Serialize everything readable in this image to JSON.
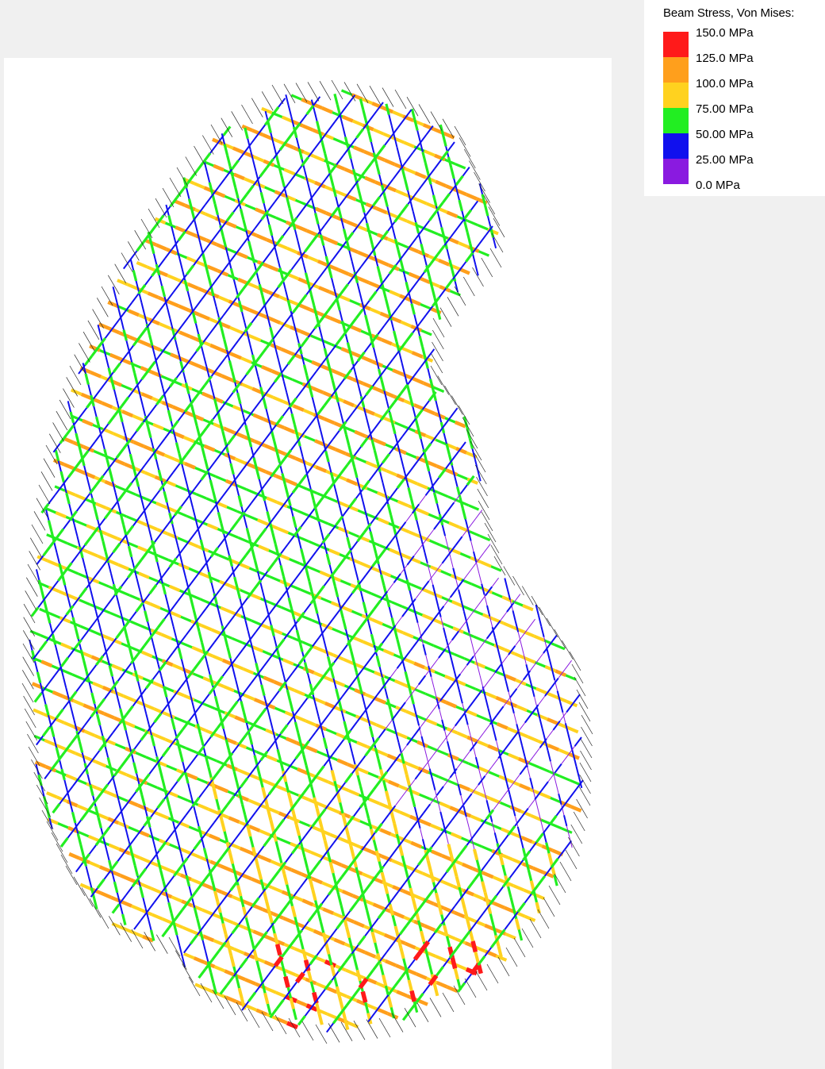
{
  "legend": {
    "title": "Beam Stress, Von Mises:",
    "entries": [
      {
        "label": "150.0 MPa",
        "color": "#ff1a1a"
      },
      {
        "label": "125.0 MPa",
        "color": "#ff9f1c"
      },
      {
        "label": "100.0 MPa",
        "color": "#ffd21f"
      },
      {
        "label": "75.00 MPa",
        "color": "#22ee22"
      },
      {
        "label": "50.00 MPa",
        "color": "#1010ee"
      },
      {
        "label": "25.00 MPa",
        "color": "#8a1ae0"
      },
      {
        "label": "0.0 MPa",
        "color": null
      }
    ]
  },
  "stress_colors": {
    "red": "#ff1a1a",
    "orange": "#ff9f1c",
    "yellow": "#ffd21f",
    "green": "#22ee22",
    "blue": "#1010ee",
    "purple": "#8a1ae0"
  }
}
